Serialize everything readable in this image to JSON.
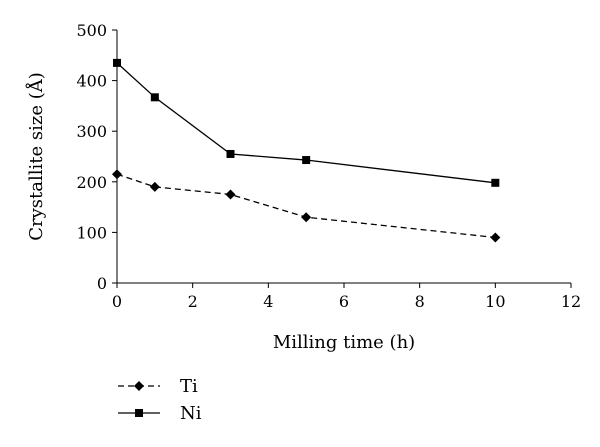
{
  "chart_data": {
    "type": "line",
    "title": "",
    "xlabel": "Milling time (h)",
    "ylabel": "Crystallite size (Å)",
    "xlim": [
      0,
      12
    ],
    "ylim": [
      0,
      500
    ],
    "xticks": [
      0,
      2,
      4,
      6,
      8,
      10,
      12
    ],
    "yticks": [
      0,
      100,
      200,
      300,
      400,
      500
    ],
    "grid": false,
    "legend_position": "bottom-left",
    "series": [
      {
        "name": "Ti",
        "marker": "diamond",
        "line_style": "dashed",
        "color": "#000000",
        "x": [
          0,
          1,
          3,
          5,
          10
        ],
        "y": [
          215,
          190,
          175,
          130,
          90
        ]
      },
      {
        "name": "Ni",
        "marker": "square",
        "line_style": "solid",
        "color": "#000000",
        "x": [
          0,
          1,
          3,
          5,
          10
        ],
        "y": [
          435,
          367,
          255,
          243,
          198
        ]
      }
    ]
  }
}
